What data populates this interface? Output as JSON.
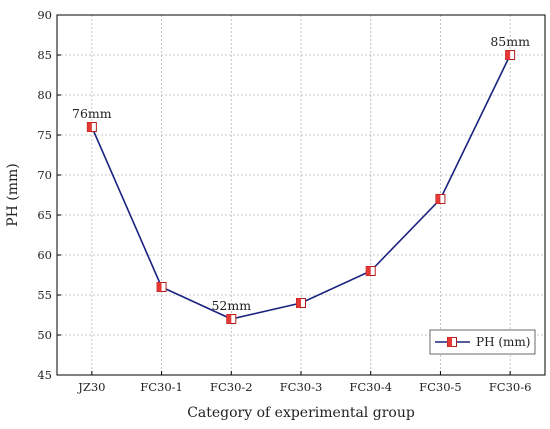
{
  "chart_data": {
    "type": "line",
    "title": "",
    "xlabel": "Category of experimental group",
    "ylabel": "PH (mm)",
    "categories": [
      "JZ30",
      "FC30-1",
      "FC30-2",
      "FC30-3",
      "FC30-4",
      "FC30-5",
      "FC30-6"
    ],
    "series": [
      {
        "name": "PH (mm)",
        "values": [
          76,
          56,
          52,
          54,
          58,
          67,
          85
        ]
      }
    ],
    "ylim": [
      45,
      90
    ],
    "yticks": [
      45,
      50,
      55,
      60,
      65,
      70,
      75,
      80,
      85,
      90
    ],
    "grid": true,
    "legend_position": "bottom-right",
    "annotations": [
      {
        "category": "JZ30",
        "value": 76,
        "text": "76mm"
      },
      {
        "category": "FC30-2",
        "value": 52,
        "text": "52mm"
      },
      {
        "category": "FC30-6",
        "value": 85,
        "text": "85mm"
      }
    ],
    "colors": {
      "line": "#1a237e",
      "marker_fill": "#e53935",
      "marker_edge": "#b71c1c",
      "grid": "#b5b5b5"
    }
  }
}
